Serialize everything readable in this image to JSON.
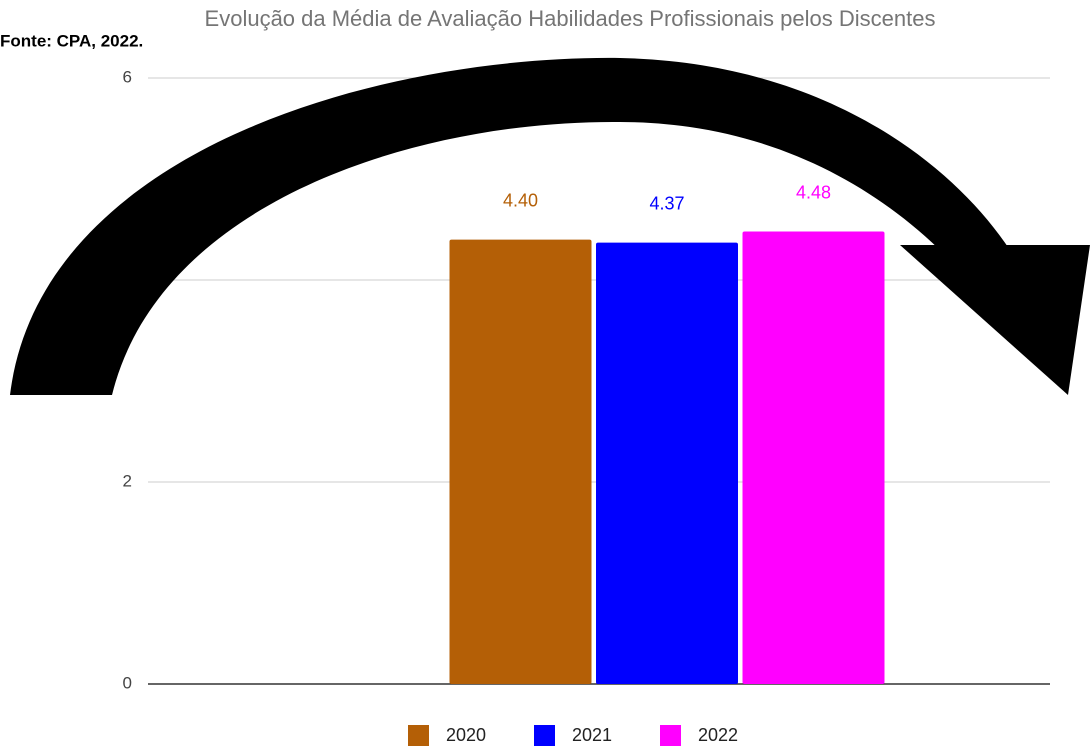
{
  "chart_data": {
    "type": "bar",
    "title": "Evolução da Média de Avaliação Habilidades Profissionais pelos Discentes",
    "annotation": "Fonte: CPA, 2022.",
    "categories": [
      null
    ],
    "series": [
      {
        "name": "2020",
        "color": "#b45f06",
        "values": [
          4.4
        ],
        "value_labels": [
          "4.40"
        ]
      },
      {
        "name": "2021",
        "color": "#0000ff",
        "values": [
          4.37
        ],
        "value_labels": [
          "4.37"
        ]
      },
      {
        "name": "2022",
        "color": "#ff00ff",
        "values": [
          4.48
        ],
        "value_labels": [
          "4.48"
        ]
      }
    ],
    "ylim": [
      0,
      6
    ],
    "yticks": [
      0,
      2,
      4,
      6
    ],
    "grid": true,
    "legend": "bottom"
  }
}
